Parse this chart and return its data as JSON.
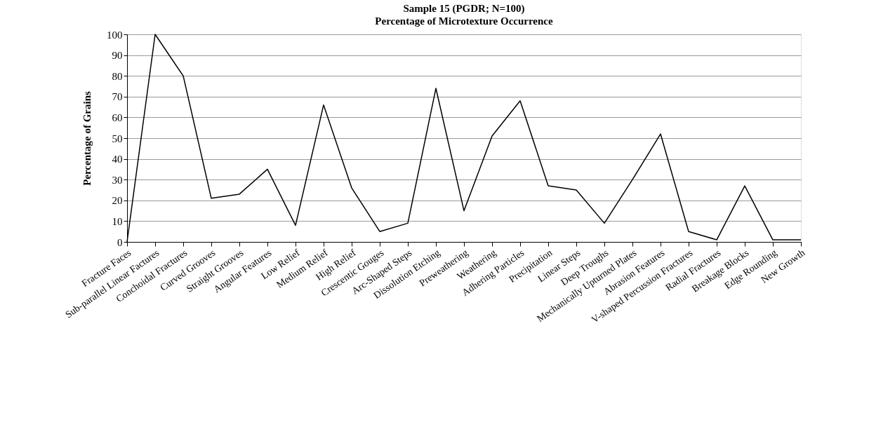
{
  "chart_data": {
    "type": "line",
    "title": "Sample 15 (PGDR; N=100)",
    "subtitle": "Percentage of Microtexture Occurrence",
    "ylabel": "Percentage of Grains",
    "categories": [
      "Fracture Faces",
      "Sub-parallel Linear Factures",
      "Conchoidal Fractures",
      "Curved Grooves",
      "Straight Grooves",
      "Angular Features",
      "Low Relief",
      "Medium Relief",
      "High Relief",
      "Crescentic Gouges",
      "Arc-Shaped Steps",
      "Dissolution Etching",
      "Preweathering",
      "Weathering",
      "Adhering Particles",
      "Precipitation",
      "Linear Steps",
      "Deep Troughs",
      "Mechanically Upturned Plates",
      "Abrasion Features",
      "V-shaped Percussion Fractures",
      "Radial Fractures",
      "Breakage Blocks",
      "Edge Rounding",
      "New Growth"
    ],
    "series": [
      {
        "color": "#000000",
        "values": [
          0,
          100,
          80,
          21,
          23,
          35,
          8,
          66,
          26,
          5,
          9,
          74,
          15,
          51,
          68,
          27,
          25,
          9,
          30,
          52,
          5,
          1,
          27,
          1,
          1
        ]
      }
    ],
    "ylim": [
      0,
      100
    ],
    "yticks": [
      0,
      10,
      20,
      30,
      40,
      50,
      60,
      70,
      80,
      90,
      100
    ],
    "grid": "y",
    "legend": false,
    "marker": "none",
    "line_style": "solid"
  }
}
